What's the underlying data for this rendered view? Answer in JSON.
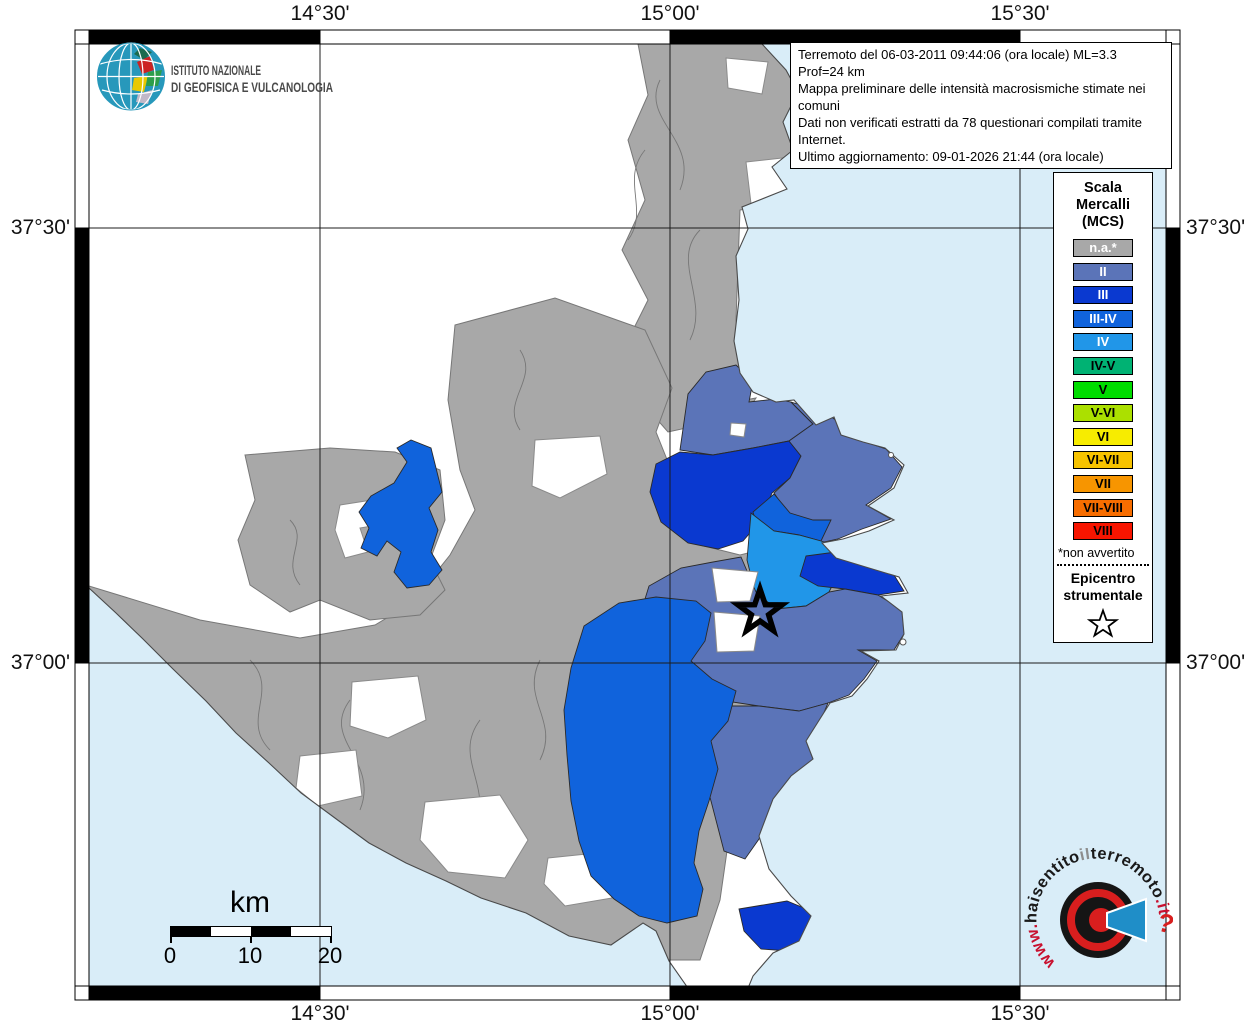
{
  "info_box": {
    "lines": [
      "Terremoto del 06-03-2011 09:44:06 (ora locale) ML=3.3 Prof=24 km",
      "Mappa preliminare delle intensità macrosismiche stimate nei comuni",
      "Dati non verificati estratti da 78 questionari compilati tramite Internet.",
      "Ultimo aggiornamento: 09-01-2026 21:44 (ora locale)"
    ]
  },
  "ingv_logo": {
    "line1": "ISTITUTO NAZIONALE",
    "line2": "DI GEOFISICA E VULCANOLOGIA"
  },
  "legend": {
    "title_lines": [
      "Scala",
      "Mercalli",
      "(MCS)"
    ],
    "items": [
      {
        "label": "n.a.*",
        "key": "na",
        "label_color": "#ffffff"
      },
      {
        "label": "II",
        "key": "II",
        "label_color": "#ffffff"
      },
      {
        "label": "III",
        "key": "III",
        "label_color": "#ffffff"
      },
      {
        "label": "III-IV",
        "key": "III-IV",
        "label_color": "#ffffff"
      },
      {
        "label": "IV",
        "key": "IV",
        "label_color": "#ffffff"
      },
      {
        "label": "IV-V",
        "key": "IV-V",
        "label_color": "#000000"
      },
      {
        "label": "V",
        "key": "V",
        "label_color": "#000000"
      },
      {
        "label": "V-VI",
        "key": "V-VI",
        "label_color": "#000000"
      },
      {
        "label": "VI",
        "key": "VI",
        "label_color": "#000000"
      },
      {
        "label": "VI-VII",
        "key": "VI-VII",
        "label_color": "#000000"
      },
      {
        "label": "VII",
        "key": "VII",
        "label_color": "#000000"
      },
      {
        "label": "VII-VIII",
        "key": "VII-VIII",
        "label_color": "#000000"
      },
      {
        "label": "VIII",
        "key": "VIII",
        "label_color": "#000000"
      }
    ],
    "footnote": "*non avvertito",
    "epicenter_title_lines": [
      "Epicentro",
      "strumentale"
    ]
  },
  "axis": {
    "top": [
      "14°30'",
      "15°00'",
      "15°30'"
    ],
    "bottom": [
      "14°30'",
      "15°00'",
      "15°30'"
    ],
    "left": [
      "37°30'",
      "37°00'"
    ],
    "right": [
      "37°30'",
      "37°00'"
    ]
  },
  "scale_bar": {
    "unit": "km",
    "tick_labels": [
      "0",
      "10",
      "20"
    ]
  },
  "watermark": {
    "segments": [
      {
        "text": "www.",
        "color": "#c8102e"
      },
      {
        "text": "haisentito",
        "color": "#1a1a1a"
      },
      {
        "text": "il",
        "color": "#8d8d8d"
      },
      {
        "text": "terremoto",
        "color": "#1a1a1a"
      },
      {
        "text": ".it",
        "color": "#c8102e"
      }
    ],
    "question_mark": "?"
  },
  "map": {
    "colors": {
      "sea": "#d9edf8",
      "land_no_data": "#ffffff",
      "land_na": "#a9a9a9",
      "boundary": "#777777",
      "coast": "#4a4a4a",
      "grid": "#1c1c1c"
    },
    "intensity_colors": {
      "na": "#a8a8a8",
      "II": "#5b74b8",
      "III": "#0a39d0",
      "III-IV": "#1063dc",
      "IV": "#2196e8",
      "IV-V": "#00b273",
      "V": "#00dd00",
      "V-VI": "#abe000",
      "VI": "#f7ec00",
      "VI-VII": "#f7c300",
      "VII": "#f79500",
      "VII-VIII": "#f76d00",
      "VIII": "#f71500"
    }
  }
}
